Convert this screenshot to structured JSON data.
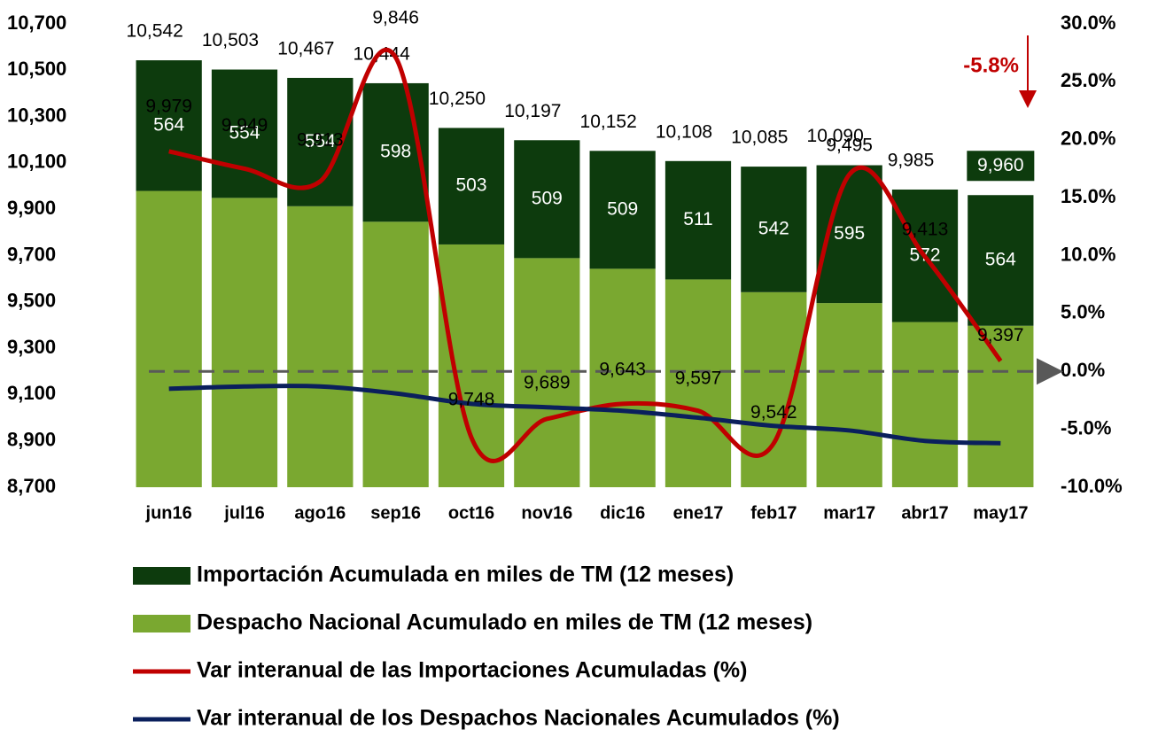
{
  "chart_data": {
    "type": "bar",
    "categories": [
      "jun16",
      "jul16",
      "ago16",
      "sep16",
      "oct16",
      "nov16",
      "dic16",
      "ene17",
      "feb17",
      "mar17",
      "abr17",
      "may17"
    ],
    "series": [
      {
        "name": "Importación Acumulada en miles de TM (12 meses)",
        "color": "#0d3b0d",
        "stack": true,
        "values": [
          564,
          554,
          554,
          598,
          503,
          509,
          509,
          511,
          542,
          595,
          572,
          564
        ]
      },
      {
        "name": "Despacho Nacional Acumulado en miles de TM (12 meses)",
        "color": "#7aa830",
        "stack": true,
        "base": true,
        "values": [
          9979,
          9949,
          9913,
          9846,
          9748,
          9689,
          9643,
          9597,
          9542,
          9495,
          9413,
          9397
        ],
        "value_labels": [
          "9,979",
          "9,949",
          "9,913",
          "9,846",
          "9,748",
          "9,689",
          "9,643",
          "9,597",
          "9,542",
          "9,495",
          "9,413",
          "9,397"
        ]
      },
      {
        "name": "Var interanual de las Importaciones Acumuladas (%)",
        "color": "#c00000",
        "axis": "y2",
        "values": [
          19.0,
          17.5,
          16.4,
          27.1,
          -5.7,
          -4.1,
          -2.8,
          -3.4,
          -6.2,
          17.0,
          9.9,
          0.9
        ]
      },
      {
        "name": "Var interanual de los Despachos Nacionales Acumulados (%)",
        "color": "#0a1f5c",
        "axis": "y2",
        "values": [
          -1.5,
          -1.3,
          -1.3,
          -1.9,
          -2.8,
          -3.1,
          -3.4,
          -4.0,
          -4.7,
          -5.1,
          -6.0,
          -6.2
        ]
      }
    ],
    "total_labels": [
      "10,542",
      "10,503",
      "10,467",
      "10,444",
      "10,250",
      "10,197",
      "10,152",
      "10,108",
      "10,085",
      "10,090",
      "9,985",
      "9,960"
    ],
    "ylim": [
      8700,
      10700
    ],
    "yticks": [
      {
        "value": 8700,
        "label": "8,700"
      },
      {
        "value": 8900,
        "label": "8,900"
      },
      {
        "value": 9100,
        "label": "9,100"
      },
      {
        "value": 9300,
        "label": "9,300"
      },
      {
        "value": 9500,
        "label": "9,500"
      },
      {
        "value": 9700,
        "label": "9,700"
      },
      {
        "value": 9900,
        "label": "9,900"
      },
      {
        "value": 10100,
        "label": "10,100"
      },
      {
        "value": 10300,
        "label": "10,300"
      },
      {
        "value": 10500,
        "label": "10,500"
      },
      {
        "value": 10700,
        "label": "10,700"
      }
    ],
    "y2lim": [
      -10,
      30
    ],
    "y2ticks": [
      {
        "value": -10,
        "label": "-10.0%"
      },
      {
        "value": -5,
        "label": "-5.0%"
      },
      {
        "value": 0,
        "label": "0.0%"
      },
      {
        "value": 5,
        "label": "5.0%"
      },
      {
        "value": 10,
        "label": "10.0%"
      },
      {
        "value": 15,
        "label": "15.0%"
      },
      {
        "value": 20,
        "label": "20.0%"
      },
      {
        "value": 25,
        "label": "25.0%"
      },
      {
        "value": 30,
        "label": "30.0%"
      }
    ],
    "reference_line": {
      "value": 0,
      "color": "#595959"
    },
    "annotation": {
      "text": "-5.8%",
      "color": "#c00000"
    }
  }
}
